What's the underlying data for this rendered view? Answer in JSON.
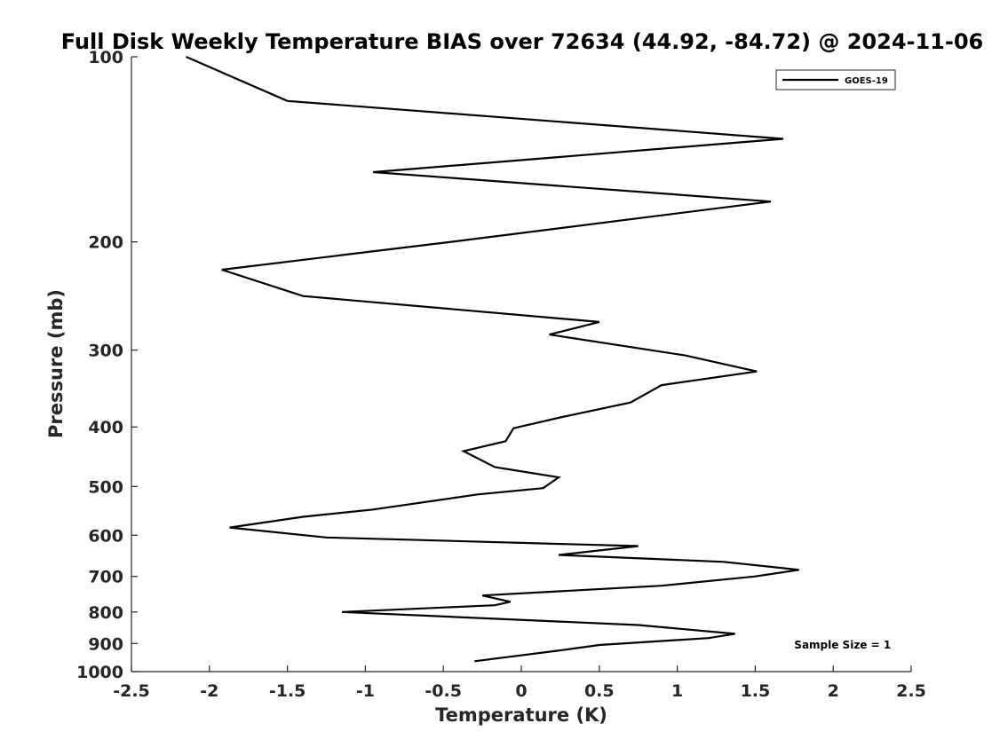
{
  "chart_data": {
    "type": "line",
    "title": "Full Disk Weekly Temperature BIAS over 72634 (44.92, -84.72) @ 2024-11-06",
    "xlabel": "Temperature (K)",
    "ylabel": "Pressure (mb)",
    "xlim": [
      -2.5,
      2.5
    ],
    "ylim": [
      100,
      1000
    ],
    "y_scale": "log",
    "y_reversed": true,
    "grid": false,
    "x_ticks": [
      -2.5,
      -2,
      -1.5,
      -1,
      -0.5,
      0,
      0.5,
      1,
      1.5,
      2,
      2.5
    ],
    "x_tick_labels": [
      "-2.5",
      "-2",
      "-1.5",
      "-1",
      "-0.5",
      "0",
      "0.5",
      "1",
      "1.5",
      "2",
      "2.5"
    ],
    "y_ticks": [
      100,
      200,
      300,
      400,
      500,
      600,
      700,
      800,
      900,
      1000
    ],
    "y_tick_labels": [
      "100",
      "200",
      "300",
      "400",
      "500",
      "600",
      "700",
      "800",
      "900",
      "1000"
    ],
    "legend_position": "top-right",
    "line_color": "#000000",
    "series": [
      {
        "name": "GOES-19",
        "points": [
          [
            -2.15,
            100
          ],
          [
            -1.5,
            118
          ],
          [
            1.68,
            136
          ],
          [
            -0.95,
            154
          ],
          [
            1.6,
            172
          ],
          [
            -0.45,
            200
          ],
          [
            -1.92,
            222
          ],
          [
            -1.4,
            245
          ],
          [
            0.5,
            270
          ],
          [
            0.18,
            283
          ],
          [
            1.05,
            306
          ],
          [
            1.51,
            325
          ],
          [
            0.9,
            342
          ],
          [
            0.7,
            365
          ],
          [
            0.25,
            386
          ],
          [
            -0.05,
            402
          ],
          [
            -0.1,
            422
          ],
          [
            -0.37,
            438
          ],
          [
            -0.17,
            465
          ],
          [
            0.24,
            483
          ],
          [
            0.14,
            503
          ],
          [
            -0.28,
            515
          ],
          [
            -0.95,
            545
          ],
          [
            -1.4,
            560
          ],
          [
            -1.87,
            583
          ],
          [
            -1.25,
            605
          ],
          [
            0.75,
            625
          ],
          [
            0.24,
            646
          ],
          [
            1.3,
            663
          ],
          [
            1.78,
            683
          ],
          [
            1.5,
            700
          ],
          [
            0.9,
            725
          ],
          [
            -0.25,
            752
          ],
          [
            -0.07,
            770
          ],
          [
            -0.17,
            780
          ],
          [
            -1.15,
            800
          ],
          [
            0.75,
            840
          ],
          [
            1.37,
            868
          ],
          [
            1.2,
            882
          ],
          [
            0.5,
            905
          ],
          [
            0.23,
            925
          ],
          [
            -0.3,
            962
          ]
        ]
      }
    ],
    "annotations": [
      {
        "text": "Sample Size = 1",
        "x": 1.75,
        "y": 905
      }
    ]
  }
}
